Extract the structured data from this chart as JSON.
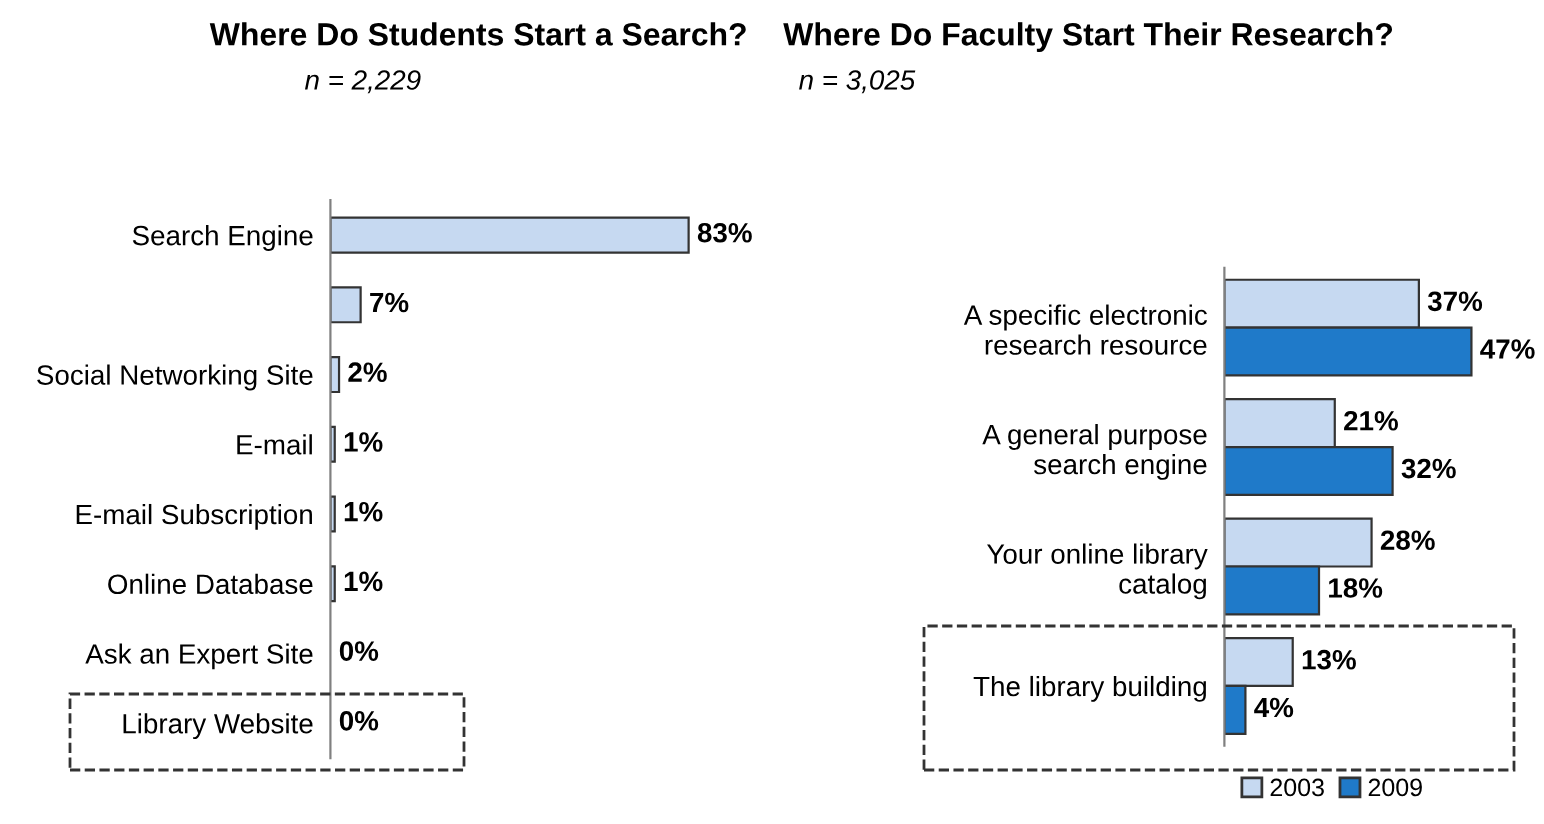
{
  "chart_data": [
    {
      "type": "bar",
      "orientation": "horizontal",
      "title": "Where Do Students Start a Search?",
      "subtitle": "n = 2,229",
      "categories": [
        "Search Engine",
        null,
        "Social Networking Site",
        "E-mail",
        "E-mail Subscription",
        "Online Database",
        "Ask an Expert Site",
        "Library Website"
      ],
      "series": [
        {
          "color": "#c6d9f1",
          "values": [
            83,
            7,
            2,
            1,
            1,
            1,
            0,
            0
          ],
          "value_labels": [
            "83%",
            "7%",
            "2%",
            "1%",
            "1%",
            "1%",
            "0%",
            "0%"
          ]
        }
      ],
      "legend": false
    },
    {
      "type": "bar",
      "orientation": "horizontal",
      "title": "Where Do Faculty Start Their Research?",
      "subtitle": "n = 3,025",
      "categories": [
        "A specific electronic\nresearch resource",
        "A general purpose\nsearch engine",
        "Your online library\ncatalog",
        "The library building"
      ],
      "series": [
        {
          "name": "2003",
          "color": "#c6d9f1",
          "values": [
            37,
            21,
            28,
            13
          ],
          "value_labels": [
            "37%",
            "21%",
            "28%",
            "13%"
          ]
        },
        {
          "name": "2009",
          "color": "#1f7ac9",
          "values": [
            47,
            32,
            18,
            4
          ],
          "value_labels": [
            "47%",
            "32%",
            "18%",
            "4%"
          ]
        }
      ],
      "legend": "bottom"
    }
  ]
}
